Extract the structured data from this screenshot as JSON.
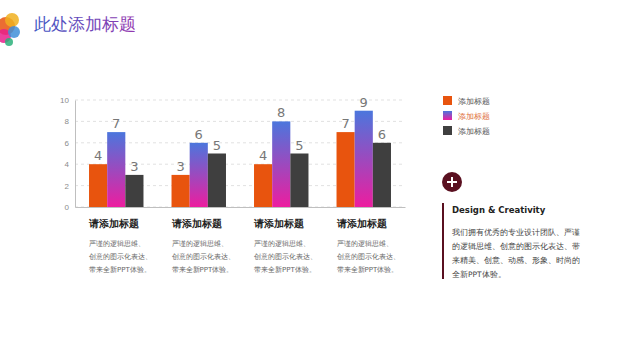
{
  "chart_data": {
    "type": "bar",
    "title": "此处添加标题",
    "categories": [
      "请添加标题",
      "请添加标题",
      "请添加标题",
      "请添加标题"
    ],
    "annotations": [
      [
        "严谨的逻辑思维、",
        "创意的图示化表达、",
        "带来全新PPT体验。"
      ],
      [
        "严谨的逻辑思维、",
        "创意的图示化表达、",
        "带来全新PPT体验。"
      ],
      [
        "严谨的逻辑思维、",
        "创意的图示化表达、",
        "带来全新PPT体验。"
      ],
      [
        "严谨的逻辑思维、",
        "创意的图示化表达、",
        "带来全新PPT体验。"
      ]
    ],
    "series": [
      {
        "name": "添加标题",
        "color": "#e8540e",
        "values": [
          4,
          3,
          4,
          7
        ]
      },
      {
        "name": "添加标题",
        "color": "#8a4fd0",
        "values": [
          7,
          6,
          8,
          9
        ]
      },
      {
        "name": "添加标题",
        "color": "#3f3f3f",
        "values": [
          3,
          5,
          5,
          6
        ]
      }
    ],
    "ylim": [
      0,
      10
    ],
    "yticks": [
      0,
      2,
      4,
      6,
      8,
      10
    ],
    "grid": true,
    "data_labels": true,
    "legend": "right"
  },
  "side_note": {
    "heading": "Design & Creativity",
    "lines": [
      "我们拥有优秀的专业设计团队、严谨",
      "的逻辑思维、创意的图示化表达、带",
      "来精美、创意、动感、形象、时尚的",
      "全新PPT体验。"
    ]
  }
}
